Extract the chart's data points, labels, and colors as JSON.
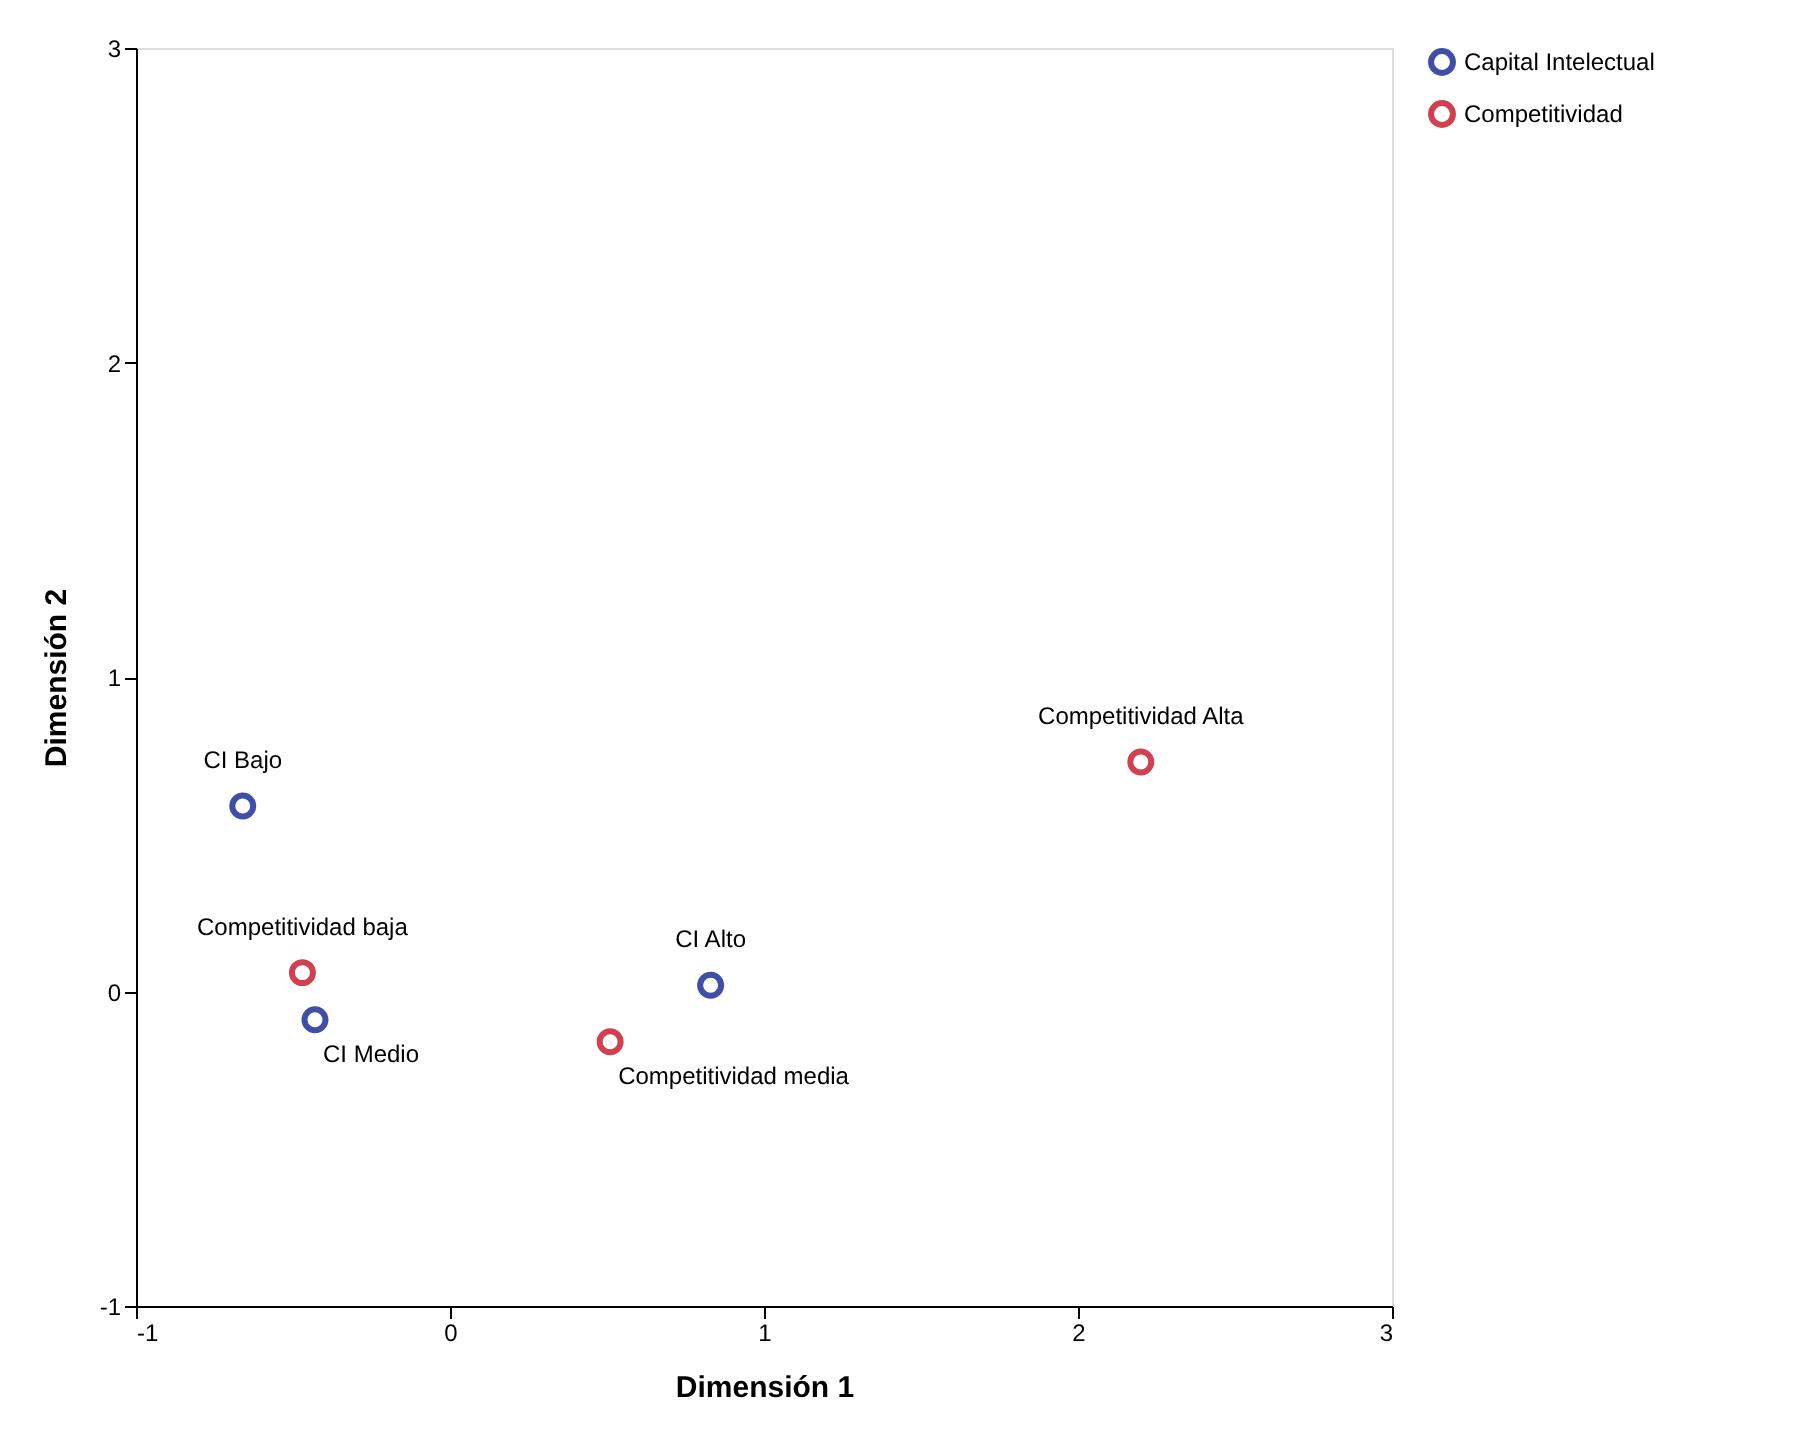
{
  "chart_data": {
    "type": "scatter",
    "xlabel": "Dimensión 1",
    "ylabel": "Dimensión 2",
    "xlim": [
      -1,
      3
    ],
    "ylim": [
      -1,
      3
    ],
    "xticks": [
      {
        "value": -1,
        "label": "-1"
      },
      {
        "value": 0,
        "label": "0"
      },
      {
        "value": 1,
        "label": "1"
      },
      {
        "value": 2,
        "label": "2"
      },
      {
        "value": 3,
        "label": "3"
      }
    ],
    "yticks": [
      {
        "value": -1,
        "label": "-1"
      },
      {
        "value": 0,
        "label": "0"
      },
      {
        "value": 1,
        "label": "1"
      },
      {
        "value": 2,
        "label": "2"
      },
      {
        "value": 3,
        "label": "3"
      }
    ],
    "grid": false,
    "legend": "top right",
    "marker": "circle",
    "series": [
      {
        "name": "Capital Intelectual",
        "color": "#3f4fa8",
        "x": [
          -0.66,
          -0.43,
          0.83
        ],
        "values": [
          0.59,
          -0.09,
          0.02
        ]
      },
      {
        "name": "Competitividad",
        "color": "#d0404f",
        "x": [
          -0.47,
          0.51,
          2.2
        ],
        "values": [
          0.06,
          -0.16,
          0.73
        ]
      }
    ],
    "annotations": [
      {
        "text": "CI Bajo",
        "x": -0.66,
        "y": 0.59
      },
      {
        "text": "CI Medio",
        "x": -0.43,
        "y": -0.09
      },
      {
        "text": "CI Alto",
        "x": 0.83,
        "y": 0.02
      },
      {
        "text": "Competitividad baja",
        "x": -0.47,
        "y": 0.06
      },
      {
        "text": "Competitividad media",
        "x": 0.51,
        "y": -0.16
      },
      {
        "text": "Competitividad Alta",
        "x": 2.2,
        "y": 0.73
      }
    ]
  }
}
